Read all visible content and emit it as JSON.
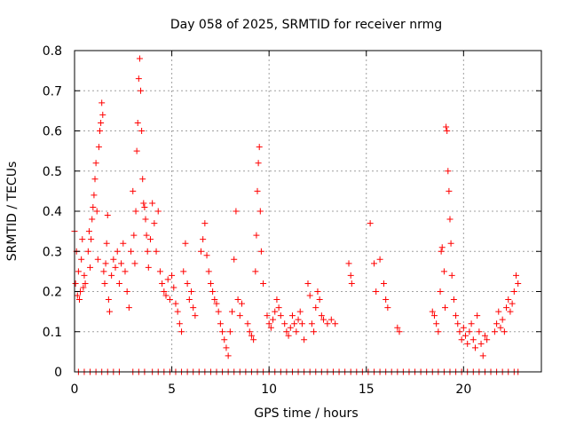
{
  "chart_data": {
    "type": "scatter",
    "title": "Day 058 of 2025, SRMTID for receiver nrmg",
    "xlabel": "GPS time / hours",
    "ylabel": "SRMTID / TECUs",
    "xlim": [
      0,
      24
    ],
    "ylim": [
      0,
      0.8
    ],
    "xticks": [
      0,
      5,
      10,
      15,
      20
    ],
    "xtick_labels": [
      "0",
      "5",
      "10",
      "15",
      "20"
    ],
    "yticks": [
      0,
      0.1,
      0.2,
      0.3,
      0.4,
      0.5,
      0.6,
      0.7,
      0.8
    ],
    "ytick_labels": [
      "0",
      "0.1",
      "0.2",
      "0.3",
      "0.4",
      "0.5",
      "0.6",
      "0.7",
      "0.8"
    ],
    "grid": true,
    "marker": "+",
    "color": "#ff0000",
    "series": [
      {
        "name": "SRMTID",
        "points": [
          [
            0.0,
            0.35
          ],
          [
            0.05,
            0.22
          ],
          [
            0.1,
            0.3
          ],
          [
            0.15,
            0.19
          ],
          [
            0.2,
            0.25
          ],
          [
            0.25,
            0.18
          ],
          [
            0.3,
            0.2
          ],
          [
            0.35,
            0.28
          ],
          [
            0.4,
            0.33
          ],
          [
            0.45,
            0.21
          ],
          [
            0.5,
            0.24
          ],
          [
            0.55,
            0.22
          ],
          [
            0.7,
            0.3
          ],
          [
            0.75,
            0.35
          ],
          [
            0.8,
            0.26
          ],
          [
            0.85,
            0.33
          ],
          [
            0.9,
            0.38
          ],
          [
            0.95,
            0.41
          ],
          [
            1.0,
            0.44
          ],
          [
            1.05,
            0.48
          ],
          [
            1.1,
            0.52
          ],
          [
            1.15,
            0.4
          ],
          [
            1.2,
            0.28
          ],
          [
            1.25,
            0.56
          ],
          [
            1.3,
            0.6
          ],
          [
            1.35,
            0.62
          ],
          [
            1.4,
            0.67
          ],
          [
            1.45,
            0.64
          ],
          [
            1.5,
            0.25
          ],
          [
            1.55,
            0.22
          ],
          [
            1.6,
            0.27
          ],
          [
            1.65,
            0.32
          ],
          [
            1.7,
            0.39
          ],
          [
            1.75,
            0.18
          ],
          [
            1.8,
            0.15
          ],
          [
            1.9,
            0.24
          ],
          [
            2.0,
            0.28
          ],
          [
            2.1,
            0.26
          ],
          [
            2.2,
            0.3
          ],
          [
            2.3,
            0.22
          ],
          [
            2.4,
            0.27
          ],
          [
            2.5,
            0.32
          ],
          [
            2.6,
            0.25
          ],
          [
            2.7,
            0.2
          ],
          [
            2.8,
            0.16
          ],
          [
            2.9,
            0.3
          ],
          [
            3.0,
            0.45
          ],
          [
            3.05,
            0.34
          ],
          [
            3.1,
            0.27
          ],
          [
            3.15,
            0.4
          ],
          [
            3.2,
            0.55
          ],
          [
            3.25,
            0.62
          ],
          [
            3.3,
            0.73
          ],
          [
            3.35,
            0.78
          ],
          [
            3.4,
            0.7
          ],
          [
            3.45,
            0.6
          ],
          [
            3.5,
            0.48
          ],
          [
            3.55,
            0.42
          ],
          [
            3.6,
            0.41
          ],
          [
            3.65,
            0.38
          ],
          [
            3.7,
            0.34
          ],
          [
            3.75,
            0.3
          ],
          [
            3.8,
            0.26
          ],
          [
            3.9,
            0.33
          ],
          [
            4.0,
            0.42
          ],
          [
            4.1,
            0.37
          ],
          [
            4.2,
            0.3
          ],
          [
            4.3,
            0.4
          ],
          [
            4.4,
            0.25
          ],
          [
            4.5,
            0.22
          ],
          [
            4.6,
            0.2
          ],
          [
            4.7,
            0.19
          ],
          [
            4.8,
            0.23
          ],
          [
            4.9,
            0.18
          ],
          [
            5.0,
            0.24
          ],
          [
            5.1,
            0.21
          ],
          [
            5.2,
            0.17
          ],
          [
            5.3,
            0.15
          ],
          [
            5.4,
            0.12
          ],
          [
            5.5,
            0.1
          ],
          [
            5.6,
            0.25
          ],
          [
            5.7,
            0.32
          ],
          [
            5.8,
            0.22
          ],
          [
            5.9,
            0.18
          ],
          [
            6.0,
            0.2
          ],
          [
            6.1,
            0.16
          ],
          [
            6.2,
            0.14
          ],
          [
            6.5,
            0.3
          ],
          [
            6.6,
            0.33
          ],
          [
            6.7,
            0.37
          ],
          [
            6.8,
            0.29
          ],
          [
            6.9,
            0.25
          ],
          [
            7.0,
            0.22
          ],
          [
            7.1,
            0.2
          ],
          [
            7.2,
            0.18
          ],
          [
            7.3,
            0.17
          ],
          [
            7.4,
            0.15
          ],
          [
            7.5,
            0.12
          ],
          [
            7.6,
            0.1
          ],
          [
            7.7,
            0.08
          ],
          [
            7.8,
            0.06
          ],
          [
            7.9,
            0.04
          ],
          [
            8.0,
            0.1
          ],
          [
            8.1,
            0.15
          ],
          [
            8.2,
            0.28
          ],
          [
            8.3,
            0.4
          ],
          [
            8.4,
            0.18
          ],
          [
            8.5,
            0.14
          ],
          [
            8.6,
            0.17
          ],
          [
            8.9,
            0.12
          ],
          [
            9.0,
            0.1
          ],
          [
            9.1,
            0.09
          ],
          [
            9.2,
            0.08
          ],
          [
            9.3,
            0.25
          ],
          [
            9.35,
            0.34
          ],
          [
            9.4,
            0.45
          ],
          [
            9.45,
            0.52
          ],
          [
            9.5,
            0.56
          ],
          [
            9.55,
            0.4
          ],
          [
            9.6,
            0.3
          ],
          [
            9.7,
            0.22
          ],
          [
            9.9,
            0.14
          ],
          [
            10.0,
            0.12
          ],
          [
            10.1,
            0.11
          ],
          [
            10.2,
            0.13
          ],
          [
            10.3,
            0.15
          ],
          [
            10.4,
            0.18
          ],
          [
            10.5,
            0.16
          ],
          [
            10.6,
            0.14
          ],
          [
            10.8,
            0.12
          ],
          [
            10.9,
            0.1
          ],
          [
            11.0,
            0.09
          ],
          [
            11.1,
            0.11
          ],
          [
            11.2,
            0.14
          ],
          [
            11.3,
            0.12
          ],
          [
            11.4,
            0.1
          ],
          [
            11.5,
            0.13
          ],
          [
            11.6,
            0.15
          ],
          [
            11.7,
            0.12
          ],
          [
            11.8,
            0.08
          ],
          [
            12.0,
            0.22
          ],
          [
            12.1,
            0.19
          ],
          [
            12.2,
            0.12
          ],
          [
            12.3,
            0.1
          ],
          [
            12.4,
            0.16
          ],
          [
            12.5,
            0.2
          ],
          [
            12.6,
            0.18
          ],
          [
            12.7,
            0.14
          ],
          [
            12.8,
            0.13
          ],
          [
            13.0,
            0.12
          ],
          [
            13.2,
            0.13
          ],
          [
            13.4,
            0.12
          ],
          [
            14.1,
            0.27
          ],
          [
            14.2,
            0.24
          ],
          [
            14.25,
            0.22
          ],
          [
            15.2,
            0.37
          ],
          [
            15.4,
            0.27
          ],
          [
            15.5,
            0.2
          ],
          [
            15.7,
            0.28
          ],
          [
            15.9,
            0.22
          ],
          [
            16.0,
            0.18
          ],
          [
            16.1,
            0.16
          ],
          [
            16.6,
            0.11
          ],
          [
            16.7,
            0.1
          ],
          [
            18.4,
            0.15
          ],
          [
            18.5,
            0.14
          ],
          [
            18.6,
            0.12
          ],
          [
            18.7,
            0.1
          ],
          [
            18.8,
            0.2
          ],
          [
            18.85,
            0.3
          ],
          [
            18.9,
            0.31
          ],
          [
            19.0,
            0.25
          ],
          [
            19.05,
            0.16
          ],
          [
            19.1,
            0.61
          ],
          [
            19.15,
            0.6
          ],
          [
            19.2,
            0.5
          ],
          [
            19.25,
            0.45
          ],
          [
            19.3,
            0.38
          ],
          [
            19.35,
            0.32
          ],
          [
            19.4,
            0.24
          ],
          [
            19.5,
            0.18
          ],
          [
            19.6,
            0.14
          ],
          [
            19.7,
            0.12
          ],
          [
            19.8,
            0.1
          ],
          [
            19.9,
            0.08
          ],
          [
            20.0,
            0.11
          ],
          [
            20.1,
            0.09
          ],
          [
            20.2,
            0.07
          ],
          [
            20.3,
            0.1
          ],
          [
            20.4,
            0.12
          ],
          [
            20.5,
            0.08
          ],
          [
            20.6,
            0.06
          ],
          [
            20.7,
            0.14
          ],
          [
            20.8,
            0.1
          ],
          [
            20.9,
            0.07
          ],
          [
            21.0,
            0.04
          ],
          [
            21.1,
            0.09
          ],
          [
            21.2,
            0.08
          ],
          [
            21.6,
            0.1
          ],
          [
            21.7,
            0.12
          ],
          [
            21.8,
            0.15
          ],
          [
            21.9,
            0.11
          ],
          [
            22.0,
            0.13
          ],
          [
            22.1,
            0.1
          ],
          [
            22.2,
            0.16
          ],
          [
            22.3,
            0.18
          ],
          [
            22.4,
            0.15
          ],
          [
            22.5,
            0.17
          ],
          [
            22.6,
            0.2
          ],
          [
            22.7,
            0.24
          ],
          [
            22.8,
            0.22
          ]
        ],
        "zero_values_x": [
          0.2,
          0.5,
          0.8,
          1.1,
          1.4,
          1.7,
          2.0,
          2.3,
          3.0,
          3.3,
          3.6,
          4.0,
          4.3,
          4.6,
          4.9,
          5.2,
          5.5,
          5.8,
          6.1,
          6.4,
          6.7,
          7.0,
          7.3,
          7.6,
          7.9,
          8.2,
          8.5,
          8.8,
          9.1,
          9.4,
          9.7,
          10.0,
          10.3,
          10.6,
          10.9,
          11.2,
          11.5,
          11.8,
          12.1,
          12.4,
          12.7,
          13.0,
          13.3,
          13.6,
          13.9,
          14.2,
          14.5,
          14.8,
          15.1,
          15.4,
          15.7,
          16.0,
          16.3,
          16.6,
          16.9,
          17.2,
          17.5,
          17.8,
          18.1,
          18.4,
          18.7,
          19.0,
          19.3,
          19.6,
          19.9,
          20.2,
          20.5,
          20.8,
          21.1,
          21.4,
          21.7,
          22.0,
          22.3,
          22.6,
          22.8
        ]
      }
    ]
  }
}
